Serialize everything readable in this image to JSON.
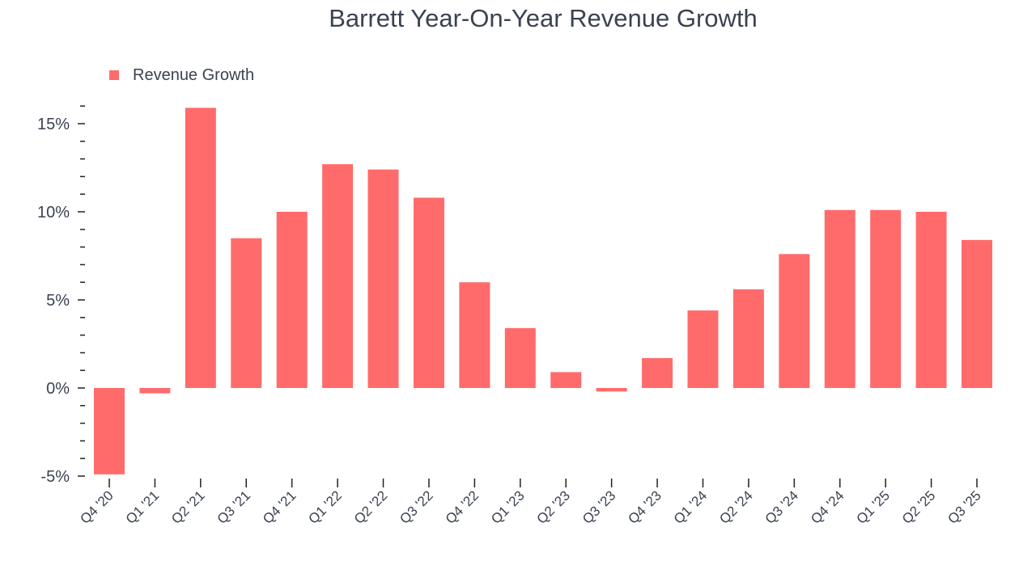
{
  "chart_data": {
    "type": "bar",
    "title": "Barrett Year-On-Year Revenue Growth",
    "xlabel": "",
    "ylabel": "",
    "legend": {
      "entries": [
        "Revenue Growth"
      ],
      "placement": "top-left"
    },
    "categories": [
      "Q4 '20",
      "Q1 '21",
      "Q2 '21",
      "Q3 '21",
      "Q4 '21",
      "Q1 '22",
      "Q2 '22",
      "Q3 '22",
      "Q4 '22",
      "Q1 '23",
      "Q2 '23",
      "Q3 '23",
      "Q4 '23",
      "Q1 '24",
      "Q2 '24",
      "Q3 '24",
      "Q4 '24",
      "Q1 '25",
      "Q2 '25",
      "Q3 '25"
    ],
    "series": [
      {
        "name": "Revenue Growth",
        "color": "#ff6b6b",
        "values": [
          -4.9,
          -0.3,
          15.9,
          8.5,
          10.0,
          12.7,
          12.4,
          10.8,
          6.0,
          3.4,
          0.9,
          -0.2,
          1.7,
          4.4,
          5.6,
          7.6,
          10.1,
          10.1,
          10.0,
          8.4
        ]
      }
    ],
    "ylim": [
      -5,
      16
    ],
    "yticks": [
      -5,
      0,
      5,
      10,
      15
    ],
    "ytick_labels": [
      "-5%",
      "0%",
      "5%",
      "10%",
      "15%"
    ],
    "grid": false
  }
}
